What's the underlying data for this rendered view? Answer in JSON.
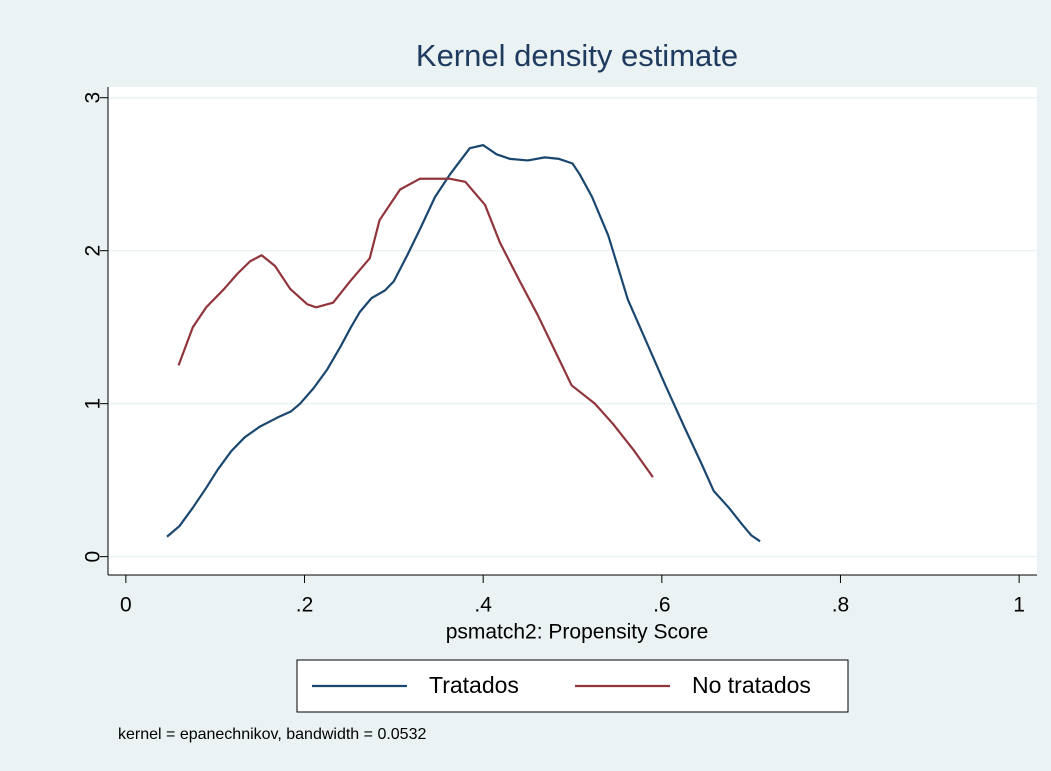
{
  "chart_data": {
    "type": "line",
    "title": "Kernel density estimate",
    "xlabel": "psmatch2: Propensity Score",
    "note": "kernel = epanechnikov, bandwidth = 0.0532",
    "xlim": [
      -0.02,
      1.02
    ],
    "ylim": [
      -0.12,
      3.07
    ],
    "xticks": [
      0,
      {
        "value": 0.2,
        "label": ".2"
      },
      {
        "value": 0.4,
        "label": ".4"
      },
      {
        "value": 0.6,
        "label": ".6"
      },
      {
        "value": 0.8,
        "label": ".8"
      },
      1
    ],
    "yticks": [
      0,
      1,
      2,
      3
    ],
    "grid": true,
    "series": [
      {
        "name": "Tratados",
        "color": "#1a476f",
        "x": [
          0.046,
          0.06,
          0.075,
          0.09,
          0.103,
          0.118,
          0.133,
          0.15,
          0.17,
          0.185,
          0.195,
          0.21,
          0.225,
          0.24,
          0.252,
          0.262,
          0.275,
          0.29,
          0.3,
          0.315,
          0.33,
          0.346,
          0.363,
          0.385,
          0.4,
          0.415,
          0.43,
          0.45,
          0.469,
          0.485,
          0.5,
          0.508,
          0.522,
          0.54,
          0.562,
          0.583,
          0.604,
          0.625,
          0.645,
          0.658,
          0.675,
          0.69,
          0.7,
          0.71
        ],
        "values": [
          0.13,
          0.2,
          0.32,
          0.45,
          0.57,
          0.69,
          0.78,
          0.85,
          0.91,
          0.95,
          1.0,
          1.1,
          1.22,
          1.37,
          1.5,
          1.6,
          1.69,
          1.74,
          1.8,
          1.97,
          2.15,
          2.35,
          2.5,
          2.67,
          2.69,
          2.63,
          2.6,
          2.59,
          2.61,
          2.6,
          2.57,
          2.5,
          2.35,
          2.1,
          1.68,
          1.4,
          1.12,
          0.85,
          0.6,
          0.43,
          0.32,
          0.21,
          0.14,
          0.1
        ]
      },
      {
        "name": "No tratados",
        "color": "#90353b",
        "x": [
          0.059,
          0.075,
          0.09,
          0.11,
          0.125,
          0.139,
          0.152,
          0.167,
          0.184,
          0.203,
          0.213,
          0.232,
          0.251,
          0.273,
          0.284,
          0.307,
          0.329,
          0.363,
          0.38,
          0.402,
          0.419,
          0.441,
          0.461,
          0.48,
          0.499,
          0.525,
          0.545,
          0.568,
          0.59
        ],
        "values": [
          1.25,
          1.5,
          1.63,
          1.75,
          1.85,
          1.93,
          1.97,
          1.9,
          1.75,
          1.65,
          1.63,
          1.66,
          1.8,
          1.95,
          2.2,
          2.4,
          2.47,
          2.47,
          2.45,
          2.3,
          2.05,
          1.8,
          1.58,
          1.35,
          1.12,
          1.0,
          0.87,
          0.7,
          0.52
        ]
      }
    ]
  }
}
